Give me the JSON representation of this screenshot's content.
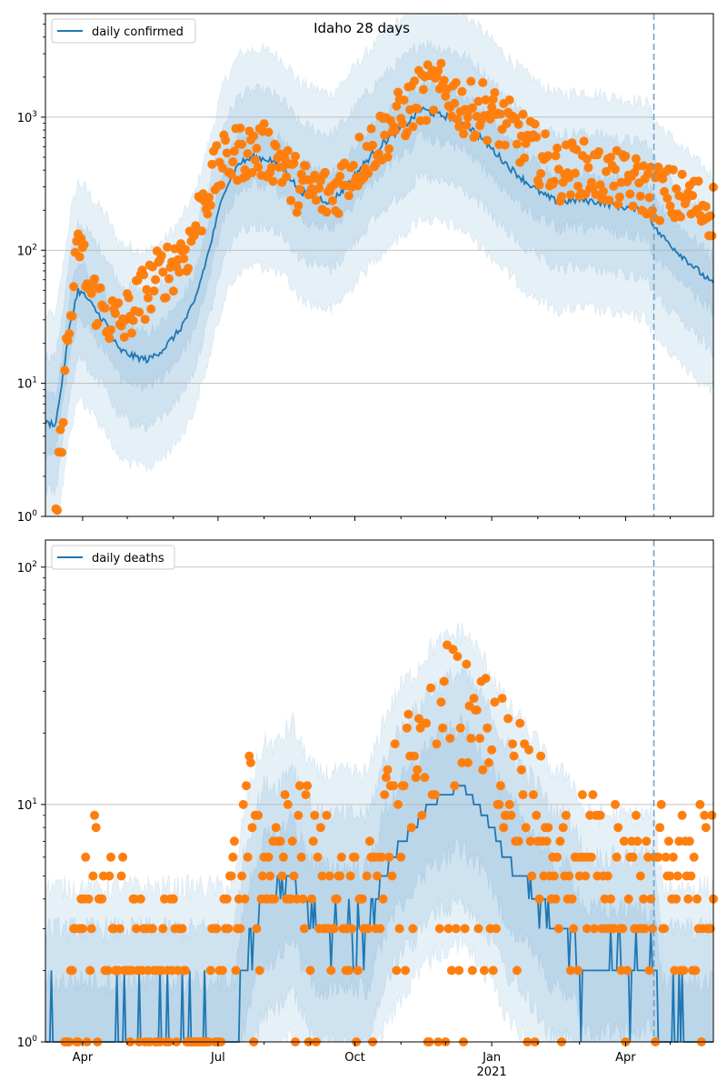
{
  "colors": {
    "line": "#1f77b4",
    "points": "#ff7f0e",
    "band": "#1f77b4",
    "grid": "#b0b0b0",
    "forecast_line": "#6a9ec7"
  },
  "chart_data": [
    {
      "type": "line",
      "title": "Idaho 28 days",
      "xlabel": "",
      "ylabel": "",
      "yscale": "log",
      "xlim": [
        "2020-03-07",
        "2021-05-30"
      ],
      "ylim": [
        1,
        6000
      ],
      "grid": "horizontal major lines",
      "legend": {
        "placement": "top-left",
        "entries": [
          "daily confirmed"
        ]
      },
      "forecast_start": "2021-04-20",
      "y_ticks": [
        {
          "value": 1,
          "base": "10",
          "exp": "0"
        },
        {
          "value": 10,
          "base": "10",
          "exp": "1"
        },
        {
          "value": 100,
          "base": "10",
          "exp": "2"
        },
        {
          "value": 1000,
          "base": "10",
          "exp": "3"
        }
      ],
      "x_ticks": [],
      "line_anchors": [
        [
          "2020-03-07",
          5
        ],
        [
          "2020-03-14",
          5
        ],
        [
          "2020-03-19",
          12
        ],
        [
          "2020-03-24",
          30
        ],
        [
          "2020-03-29",
          50
        ],
        [
          "2020-04-03",
          45
        ],
        [
          "2020-04-10",
          35
        ],
        [
          "2020-04-17",
          28
        ],
        [
          "2020-04-25",
          18
        ],
        [
          "2020-05-05",
          16
        ],
        [
          "2020-05-15",
          15
        ],
        [
          "2020-05-25",
          18
        ],
        [
          "2020-06-05",
          25
        ],
        [
          "2020-06-15",
          40
        ],
        [
          "2020-06-25",
          100
        ],
        [
          "2020-07-05",
          280
        ],
        [
          "2020-07-15",
          450
        ],
        [
          "2020-07-25",
          500
        ],
        [
          "2020-08-05",
          480
        ],
        [
          "2020-08-15",
          400
        ],
        [
          "2020-08-25",
          280
        ],
        [
          "2020-09-05",
          250
        ],
        [
          "2020-09-15",
          230
        ],
        [
          "2020-09-25",
          300
        ],
        [
          "2020-10-05",
          420
        ],
        [
          "2020-10-15",
          560
        ],
        [
          "2020-10-25",
          720
        ],
        [
          "2020-11-05",
          900
        ],
        [
          "2020-11-15",
          1150
        ],
        [
          "2020-11-25",
          1050
        ],
        [
          "2020-12-05",
          1000
        ],
        [
          "2020-12-15",
          880
        ],
        [
          "2020-12-25",
          700
        ],
        [
          "2021-01-05",
          520
        ],
        [
          "2021-01-15",
          400
        ],
        [
          "2021-01-25",
          320
        ],
        [
          "2021-02-05",
          260
        ],
        [
          "2021-02-15",
          230
        ],
        [
          "2021-03-01",
          240
        ],
        [
          "2021-03-15",
          230
        ],
        [
          "2021-04-01",
          210
        ],
        [
          "2021-04-15",
          200
        ],
        [
          "2021-04-22",
          140
        ],
        [
          "2021-05-05",
          100
        ],
        [
          "2021-05-20",
          70
        ],
        [
          "2021-05-30",
          55
        ]
      ],
      "point_anchors": [
        [
          "2020-03-14",
          1
        ],
        [
          "2020-03-16",
          2
        ],
        [
          "2020-03-20",
          12
        ],
        [
          "2020-03-25",
          40
        ],
        [
          "2020-03-30",
          120
        ],
        [
          "2020-04-05",
          50
        ],
        [
          "2020-04-12",
          40
        ],
        [
          "2020-04-20",
          30
        ],
        [
          "2020-04-28",
          28
        ],
        [
          "2020-05-10",
          45
        ],
        [
          "2020-05-20",
          60
        ],
        [
          "2020-06-01",
          80
        ],
        [
          "2020-06-12",
          110
        ],
        [
          "2020-06-22",
          250
        ],
        [
          "2020-07-02",
          420
        ],
        [
          "2020-07-15",
          550
        ],
        [
          "2020-07-28",
          560
        ],
        [
          "2020-08-10",
          520
        ],
        [
          "2020-08-20",
          330
        ],
        [
          "2020-09-01",
          280
        ],
        [
          "2020-09-15",
          260
        ],
        [
          "2020-09-28",
          400
        ],
        [
          "2020-10-10",
          560
        ],
        [
          "2020-10-20",
          740
        ],
        [
          "2020-11-01",
          1000
        ],
        [
          "2020-11-12",
          1400
        ],
        [
          "2020-11-22",
          1600
        ],
        [
          "2020-12-05",
          1500
        ],
        [
          "2020-12-15",
          1100
        ],
        [
          "2020-12-25",
          1200
        ],
        [
          "2021-01-05",
          950
        ],
        [
          "2021-01-18",
          750
        ],
        [
          "2021-02-01",
          520
        ],
        [
          "2021-02-15",
          380
        ],
        [
          "2021-03-01",
          420
        ],
        [
          "2021-03-15",
          360
        ],
        [
          "2021-04-01",
          330
        ],
        [
          "2021-04-20",
          280
        ],
        [
          "2021-05-05",
          250
        ],
        [
          "2021-05-20",
          220
        ],
        [
          "2021-05-30",
          200
        ]
      ],
      "band_ratios": [
        1.6,
        3.2,
        6.5
      ]
    },
    {
      "type": "line",
      "title": "",
      "xlabel": "",
      "ylabel": "",
      "yscale": "log",
      "xlim": [
        "2020-03-07",
        "2021-05-30"
      ],
      "ylim": [
        1,
        130
      ],
      "grid": "horizontal major lines",
      "legend": {
        "placement": "top-left",
        "entries": [
          "daily deaths"
        ]
      },
      "forecast_start": "2021-04-20",
      "y_ticks": [
        {
          "value": 1,
          "base": "10",
          "exp": "0"
        },
        {
          "value": 10,
          "base": "10",
          "exp": "1"
        },
        {
          "value": 100,
          "base": "10",
          "exp": "2"
        }
      ],
      "x_ticks": [
        {
          "date": "2020-04-01",
          "label": "Apr",
          "sublabel": ""
        },
        {
          "date": "2020-07-01",
          "label": "Jul",
          "sublabel": ""
        },
        {
          "date": "2020-10-01",
          "label": "Oct",
          "sublabel": ""
        },
        {
          "date": "2021-01-01",
          "label": "Jan",
          "sublabel": "2021"
        },
        {
          "date": "2021-04-01",
          "label": "Apr",
          "sublabel": ""
        }
      ],
      "line_anchors": [
        [
          "2020-03-07",
          1
        ],
        [
          "2020-07-12",
          1
        ],
        [
          "2020-07-18",
          2
        ],
        [
          "2020-07-25",
          3
        ],
        [
          "2020-08-01",
          4
        ],
        [
          "2020-08-10",
          4
        ],
        [
          "2020-08-20",
          5
        ],
        [
          "2020-08-25",
          4
        ],
        [
          "2020-09-05",
          3
        ],
        [
          "2020-09-25",
          3
        ],
        [
          "2020-10-10",
          3
        ],
        [
          "2020-10-20",
          5
        ],
        [
          "2020-11-01",
          7
        ],
        [
          "2020-11-10",
          8
        ],
        [
          "2020-11-20",
          10
        ],
        [
          "2020-12-01",
          11
        ],
        [
          "2020-12-12",
          12
        ],
        [
          "2020-12-22",
          10
        ],
        [
          "2021-01-01",
          8
        ],
        [
          "2021-01-10",
          6
        ],
        [
          "2021-01-20",
          5
        ],
        [
          "2021-02-01",
          4
        ],
        [
          "2021-02-12",
          3
        ],
        [
          "2021-02-22",
          3
        ],
        [
          "2021-03-05",
          2
        ],
        [
          "2021-04-20",
          2
        ],
        [
          "2021-04-26",
          1
        ],
        [
          "2021-05-30",
          1
        ]
      ],
      "point_anchors": [
        [
          "2020-03-20",
          1
        ],
        [
          "2020-03-27",
          2
        ],
        [
          "2020-04-05",
          6
        ],
        [
          "2020-04-15",
          3
        ],
        [
          "2020-04-30",
          3
        ],
        [
          "2020-05-15",
          2
        ],
        [
          "2020-06-01",
          2
        ],
        [
          "2020-06-20",
          1
        ],
        [
          "2020-07-10",
          4
        ],
        [
          "2020-07-22",
          9
        ],
        [
          "2020-08-05",
          6
        ],
        [
          "2020-08-15",
          7
        ],
        [
          "2020-08-30",
          6
        ],
        [
          "2020-09-10",
          5
        ],
        [
          "2020-09-25",
          3
        ],
        [
          "2020-10-10",
          4
        ],
        [
          "2020-10-25",
          8
        ],
        [
          "2020-11-08",
          14
        ],
        [
          "2020-11-20",
          18
        ],
        [
          "2020-12-01",
          25
        ],
        [
          "2020-12-12",
          22
        ],
        [
          "2020-12-25",
          19
        ],
        [
          "2021-01-05",
          18
        ],
        [
          "2021-01-18",
          12
        ],
        [
          "2021-02-01",
          9
        ],
        [
          "2021-02-15",
          6
        ],
        [
          "2021-03-01",
          6
        ],
        [
          "2021-03-20",
          5
        ],
        [
          "2021-04-05",
          5
        ],
        [
          "2021-04-20",
          5
        ],
        [
          "2021-05-05",
          5
        ],
        [
          "2021-05-30",
          5
        ]
      ],
      "band_ratios": [
        1.8,
        3.0,
        4.5
      ]
    }
  ]
}
